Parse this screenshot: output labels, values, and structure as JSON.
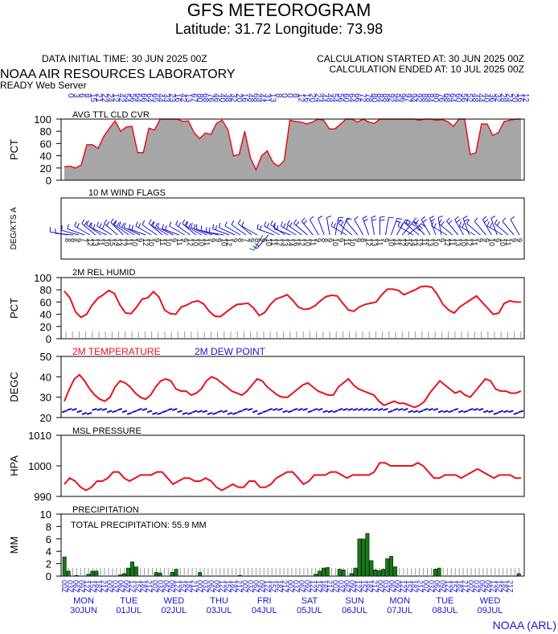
{
  "header": {
    "title": "GFS METEOROGRAM",
    "subtitle": "Latitude: 31.72 Longitude:  73.98",
    "data_time": "DATA INITIAL TIME: 30 JUN 2025 00Z",
    "calc_started": "CALCULATION STARTED AT: 30 JUN 2025 00Z",
    "calc_ended": "CALCULATION ENDED AT: 10 JUL 2025 00Z",
    "org": "NOAA AIR RESOURCES LABORATORY",
    "server": "READY Web Server",
    "footer": "NOAA (ARL)"
  },
  "time_axis": {
    "hour_labels": [
      "00Z",
      "03Z",
      "06Z",
      "09Z",
      "12Z",
      "15Z",
      "18Z",
      "21Z"
    ],
    "days": [
      {
        "dow": "MON",
        "date": "30JUN"
      },
      {
        "dow": "TUE",
        "date": "01JUL"
      },
      {
        "dow": "WED",
        "date": "02JUL"
      },
      {
        "dow": "THU",
        "date": "03JUL"
      },
      {
        "dow": "FRI",
        "date": "04JUL"
      },
      {
        "dow": "SAT",
        "date": "05JUL"
      },
      {
        "dow": "SUN",
        "date": "06JUL"
      },
      {
        "dow": "MON",
        "date": "07JUL"
      },
      {
        "dow": "TUE",
        "date": "08JUL"
      },
      {
        "dow": "WED",
        "date": "09JUL"
      }
    ]
  },
  "colors": {
    "red": "#e8111b",
    "blue": "#1515d0",
    "green": "#157a15",
    "cloud_fill": "#a6a6a6",
    "grid": "#999999"
  },
  "chart_data": [
    {
      "id": "cloud",
      "type": "area",
      "title": "AVG TTL CLD CVR",
      "ylabel": "PCT",
      "ylim": [
        0,
        100
      ],
      "yticks": [
        0,
        20,
        40,
        60,
        80,
        100
      ],
      "values": [
        22,
        23,
        20,
        25,
        58,
        58,
        52,
        72,
        85,
        97,
        80,
        87,
        88,
        45,
        45,
        85,
        82,
        100,
        100,
        100,
        100,
        96,
        97,
        78,
        68,
        77,
        75,
        93,
        98,
        83,
        40,
        42,
        80,
        37,
        17,
        40,
        48,
        29,
        23,
        32,
        98,
        96,
        95,
        92,
        95,
        100,
        98,
        84,
        84,
        92,
        100,
        100,
        95,
        100,
        95,
        93,
        100,
        100,
        100,
        100,
        100,
        100,
        100,
        98,
        100,
        100,
        98,
        99,
        96,
        88,
        100,
        100,
        42,
        45,
        92,
        92,
        73,
        78,
        96,
        98,
        100,
        100
      ],
      "top_labels": [
        "0",
        "3",
        "6",
        "8",
        "15",
        "21",
        "22",
        "24",
        "12",
        "42",
        "54",
        "56",
        "64",
        "66",
        "64",
        "65",
        "44",
        "33",
        "23",
        "16",
        "42",
        "13",
        "67",
        "80",
        "68",
        "76",
        "46",
        "40",
        "38",
        "32",
        "20",
        "16",
        "48",
        "68",
        "44",
        "31",
        "13",
        "8",
        "0",
        "0",
        "8",
        "12",
        "16",
        "20",
        "24",
        "44",
        "48",
        "54",
        "56",
        "60",
        "64",
        "66",
        "72",
        "78",
        "80",
        "84",
        "88",
        "92",
        "94",
        "96",
        "97",
        "94",
        "92",
        "88",
        "84",
        "80",
        "76",
        "68",
        "64",
        "60",
        "56",
        "52",
        "48",
        "44",
        "40",
        "36",
        "32",
        "28",
        "24",
        "20",
        "16",
        "12"
      ]
    },
    {
      "id": "wind",
      "type": "table",
      "title": "10 M  WIND FLAGS",
      "ylabel": "DEG/KTS  A",
      "speeds": [
        8,
        8,
        9,
        7,
        12,
        13,
        11,
        10,
        15,
        14,
        12,
        11,
        10,
        9,
        12,
        10,
        9,
        11,
        10,
        9,
        11,
        9,
        12,
        10,
        10,
        11,
        9,
        9,
        10,
        12,
        9,
        8,
        7,
        9,
        8,
        9,
        10,
        11,
        12,
        13,
        14,
        16,
        12,
        10,
        11,
        9,
        8,
        9,
        10,
        9,
        11,
        10,
        9,
        8,
        12,
        13,
        11,
        9,
        10,
        11,
        12,
        15,
        14,
        12,
        11,
        13,
        10,
        9,
        12,
        11,
        13,
        10,
        12,
        11,
        9,
        9,
        10,
        9,
        10,
        11,
        9,
        9
      ],
      "directions": [
        280,
        275,
        285,
        290,
        300,
        310,
        305,
        295,
        300,
        310,
        315,
        305,
        300,
        295,
        290,
        300,
        305,
        310,
        300,
        295,
        290,
        300,
        305,
        310,
        300,
        295,
        290,
        285,
        280,
        290,
        295,
        300,
        305,
        310,
        300,
        210,
        220,
        290,
        300,
        305,
        290,
        300,
        305,
        310,
        320,
        330,
        340,
        350,
        10,
        20,
        300,
        310,
        320,
        330,
        340,
        350,
        0,
        10,
        20,
        30,
        40,
        50,
        300,
        310,
        320,
        330,
        340,
        350,
        300,
        310,
        320,
        330,
        340,
        300,
        310,
        320,
        330,
        340,
        300,
        310,
        320,
        330
      ]
    },
    {
      "id": "rh",
      "type": "line",
      "title": "2M REL HUMID",
      "ylabel": "PCT",
      "ylim": [
        0,
        100
      ],
      "yticks": [
        0,
        20,
        40,
        60,
        80,
        100
      ],
      "series": [
        {
          "values": [
            78,
            67,
            44,
            35,
            40,
            55,
            66,
            72,
            79,
            74,
            55,
            42,
            41,
            52,
            65,
            67,
            77,
            68,
            47,
            41,
            40,
            52,
            55,
            60,
            62,
            57,
            45,
            37,
            36,
            43,
            50,
            56,
            57,
            58,
            50,
            38,
            43,
            56,
            65,
            68,
            72,
            63,
            52,
            48,
            49,
            54,
            62,
            69,
            71,
            70,
            58,
            47,
            45,
            52,
            56,
            58,
            60,
            72,
            81,
            81,
            79,
            72,
            76,
            80,
            85,
            86,
            84,
            72,
            56,
            47,
            42,
            52,
            58,
            64,
            70,
            60,
            50,
            40,
            42,
            58,
            62,
            60,
            60
          ]
        }
      ]
    },
    {
      "id": "temp",
      "type": "line",
      "title": "2M TEMPERATURE",
      "title2": "2M  DEW POINT",
      "ylabel": "DEGC",
      "ylim": [
        20,
        50
      ],
      "yticks": [
        20,
        30,
        40,
        50
      ],
      "series": [
        {
          "name": "2M TEMPERATURE",
          "values": [
            28,
            34,
            39,
            41,
            38,
            34,
            31,
            29,
            28,
            30,
            35,
            38,
            37,
            35,
            32,
            30,
            29,
            31,
            35,
            38,
            39,
            38,
            34,
            33,
            33,
            31,
            32,
            34,
            38,
            40,
            39,
            37,
            35,
            33,
            32,
            31,
            33,
            36,
            39,
            38,
            35,
            33,
            31,
            30,
            30,
            32,
            34,
            36,
            37,
            35,
            33,
            32,
            31,
            31,
            35,
            37,
            39,
            36,
            34,
            33,
            32,
            31,
            28,
            26,
            27,
            28,
            27,
            27,
            26,
            25,
            26,
            28,
            32,
            35,
            38,
            36,
            34,
            32,
            33,
            31,
            30,
            33,
            36,
            39,
            38,
            34,
            33,
            33,
            32,
            32,
            33
          ]
        },
        {
          "name": "2M  DEW POINT",
          "values": [
            23,
            24,
            24,
            23,
            22,
            22,
            24,
            24,
            24,
            23,
            23,
            24,
            23,
            22,
            23,
            24,
            24,
            23,
            22,
            22,
            23,
            24,
            24,
            23,
            22,
            22,
            23,
            23,
            23,
            22,
            22,
            23,
            23,
            22,
            22,
            23,
            24,
            24,
            23,
            22,
            23,
            24,
            24,
            24,
            23,
            23,
            24,
            24,
            24,
            23,
            24,
            24,
            23,
            23,
            23,
            24,
            24,
            24,
            24,
            24,
            24,
            24,
            24,
            24,
            24,
            23,
            24,
            24,
            24,
            23,
            23,
            23,
            24,
            24,
            24,
            23,
            23,
            23,
            24,
            23,
            23,
            24,
            24,
            24,
            23,
            23,
            22,
            23,
            23,
            23,
            22,
            23
          ]
        }
      ]
    },
    {
      "id": "pres",
      "type": "line",
      "title": "MSL PRESSURE",
      "ylabel": "HPA",
      "ylim": [
        990,
        1010
      ],
      "yticks": [
        990,
        1000,
        1010
      ],
      "series": [
        {
          "values": [
            994,
            996,
            995,
            993,
            992,
            993,
            995,
            995,
            996,
            998,
            998,
            996,
            995,
            996,
            997,
            997,
            997,
            998,
            998,
            996,
            994,
            995,
            996,
            996,
            995,
            995,
            996,
            995,
            993,
            992,
            993,
            994,
            993,
            993,
            995,
            995,
            993,
            993,
            994,
            996,
            997,
            998,
            998,
            996,
            994,
            995,
            997,
            997,
            997,
            998,
            998,
            997,
            996,
            997,
            997,
            997,
            997,
            998,
            1001,
            1001,
            1000,
            1000,
            1000,
            1000,
            1000,
            1001,
            1000,
            998,
            996,
            996,
            997,
            997,
            997,
            996,
            997,
            998,
            999,
            998,
            997,
            996,
            997,
            997,
            997,
            996,
            996
          ]
        }
      ]
    },
    {
      "id": "precip",
      "type": "bar",
      "title": "PRECIPITATION",
      "total": "TOTAL PRECIPITATION:  55.9 MM",
      "ylabel": "MM",
      "ylim": [
        0,
        10
      ],
      "yticks": [
        0,
        2,
        4,
        6,
        8,
        10
      ],
      "values": [
        3.1,
        0.8,
        0,
        0.1,
        0,
        0,
        0.3,
        0.8,
        0.8,
        0,
        0,
        0,
        0,
        0,
        0.2,
        0.4,
        1.3,
        2.3,
        1.5,
        0,
        0,
        0,
        0,
        0.6,
        0.5,
        0,
        0,
        0.6,
        1.1,
        0,
        0,
        0,
        0,
        0,
        0.6,
        0,
        0,
        0,
        0,
        0,
        0,
        0,
        0,
        0,
        0.1,
        0,
        0,
        0,
        0,
        0,
        0,
        0,
        0,
        0,
        0,
        0,
        0,
        0,
        0,
        0,
        0,
        0,
        0,
        0.3,
        0.8,
        1.3,
        1.4,
        0,
        0,
        1.1,
        1.0,
        0,
        0.4,
        1.3,
        6.0,
        6.0,
        6.9,
        2.5,
        1.0,
        0.9,
        1.1,
        2.8,
        3.2,
        1.5,
        0,
        0,
        0,
        0,
        0,
        0,
        0,
        0,
        0,
        1.1,
        1.3,
        0,
        0,
        0,
        0,
        0,
        0,
        0,
        0,
        0,
        0,
        0,
        0,
        0,
        0,
        0,
        0,
        0,
        0,
        0,
        0.4
      ]
    }
  ]
}
